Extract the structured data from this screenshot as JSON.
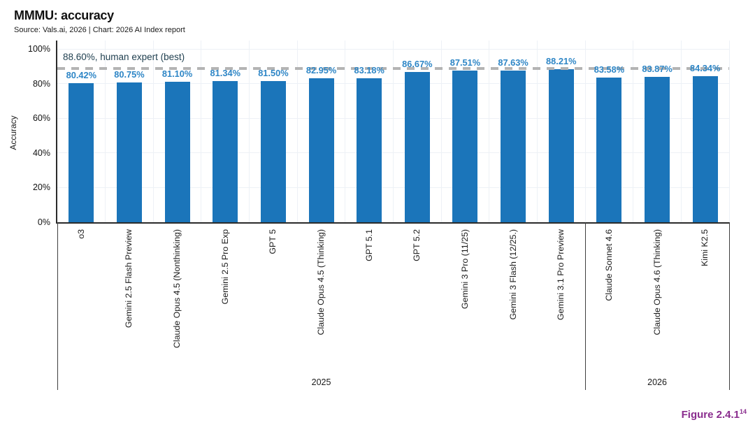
{
  "title": "MMMU: accuracy",
  "subtitle": "Source: Vals.ai, 2026 | Chart: 2026 AI Index report",
  "figure_label": "Figure 2.4.1",
  "figure_superscript": "14",
  "chart_data": {
    "type": "bar",
    "title": "MMMU: accuracy",
    "xlabel": "",
    "ylabel": "Accuracy",
    "ylim": [
      0,
      100
    ],
    "ytick_labels": [
      "0%",
      "20%",
      "40%",
      "60%",
      "80%",
      "100%"
    ],
    "grid": true,
    "reference_line": {
      "value": 88.6,
      "label": "88.60%, human expert (best)"
    },
    "categories": [
      "o3",
      "Gemini 2.5 Flash Preview",
      "Claude Opus 4.5 (Nonthinking)",
      "Gemini 2.5 Pro Exp",
      "GPT 5",
      "Claude Opus 4.5 (Thinking)",
      "GPT 5.1",
      "GPT 5.2",
      "Gemini 3 Pro (11/25)",
      "Gemini 3 Flash (12/25.)",
      "Gemini 3.1 Pro Preview",
      "Claude Sonnet 4.6",
      "Claude Opus 4.6 (Thinking)",
      "Kimi K2.5"
    ],
    "values": [
      80.42,
      80.75,
      81.1,
      81.34,
      81.5,
      82.95,
      83.18,
      86.67,
      87.51,
      87.63,
      88.21,
      83.58,
      83.87,
      84.34
    ],
    "value_labels": [
      "80.42%",
      "80.75%",
      "81.10%",
      "81.34%",
      "81.50%",
      "82.95%",
      "83.18%",
      "86.67%",
      "87.51%",
      "87.63%",
      "88.21%",
      "83.58%",
      "83.87%",
      "84.34%"
    ],
    "groups": [
      {
        "label": "2025",
        "count": 11
      },
      {
        "label": "2026",
        "count": 3
      }
    ],
    "colors": {
      "bar": "#1b75ba",
      "value_label": "#2e86c6",
      "reference_line": "#b4b4b4",
      "reference_text": "#1e3e4e",
      "grid": "#edf1f6",
      "axis": "#2b2b2b",
      "group_line": "#3f3f3f",
      "text": "#1a1a1a",
      "figure_label": "#8a2d8e"
    }
  }
}
